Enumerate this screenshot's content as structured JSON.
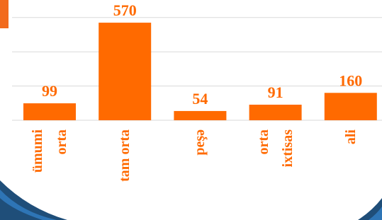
{
  "chart_data": {
    "type": "bar",
    "categories": [
      "ümumi\norta",
      "tam orta",
      "peşə",
      "orta\nixtisas",
      "ali"
    ],
    "values": [
      99,
      570,
      54,
      91,
      160
    ],
    "color": "#ff6a00",
    "ylim": [
      0,
      600
    ],
    "yticks": [
      0,
      200,
      400,
      600
    ],
    "grid": true
  }
}
